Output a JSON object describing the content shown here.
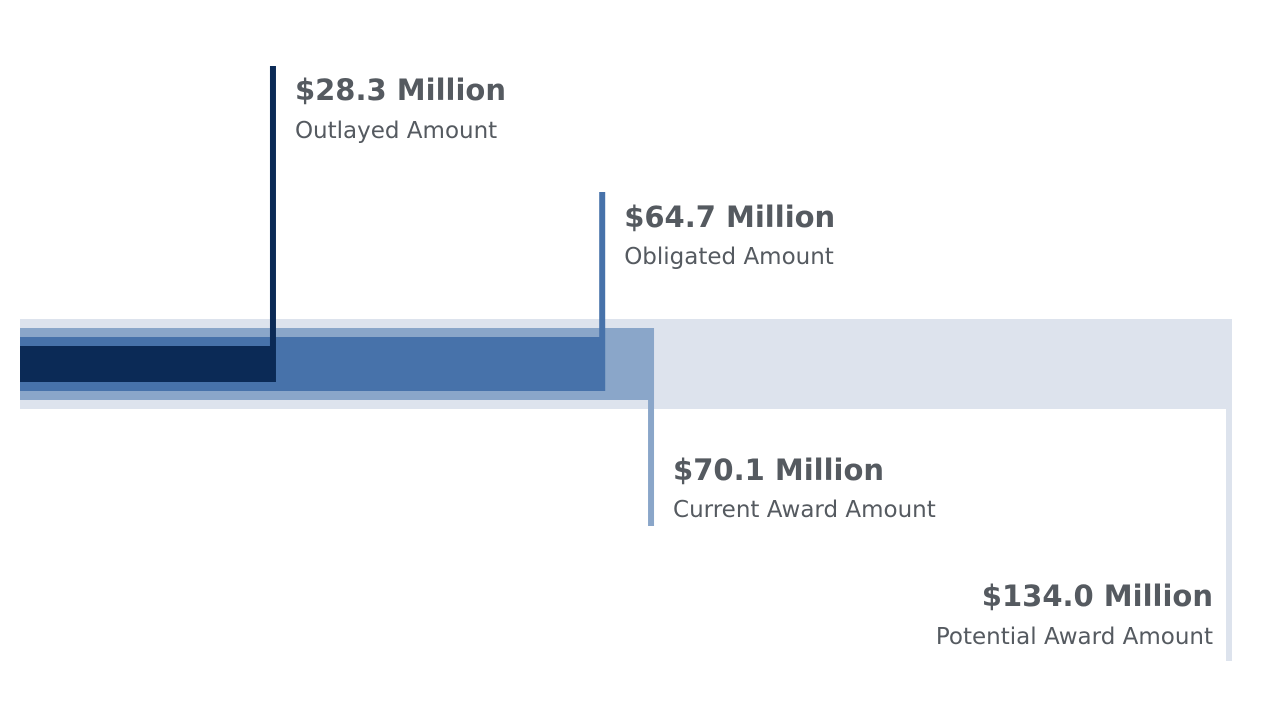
{
  "chart_data": {
    "type": "bar",
    "unit": "Million",
    "xlim": [
      0,
      134.0
    ],
    "colors": {
      "outlayed": "#0b2a56",
      "obligated": "#4772aa",
      "current": "#8aa6c9",
      "potential": "#dde3ed"
    },
    "series": [
      {
        "name": "Potential Award Amount",
        "value": 134.0,
        "value_label": "$134.0 Million",
        "label": "Potential Award Amount"
      },
      {
        "name": "Current Award Amount",
        "value": 70.1,
        "value_label": "$70.1 Million",
        "label": "Current Award Amount"
      },
      {
        "name": "Obligated Amount",
        "value": 64.7,
        "value_label": "$64.7 Million",
        "label": "Obligated Amount"
      },
      {
        "name": "Outlayed Amount",
        "value": 28.3,
        "value_label": "$28.3 Million",
        "label": "Outlayed Amount"
      }
    ]
  }
}
